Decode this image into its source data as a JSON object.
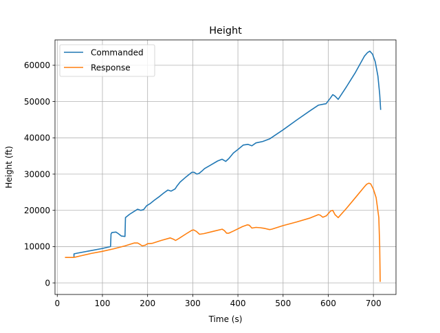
{
  "chart_data": {
    "type": "line",
    "title": "Height",
    "xlabel": "Time (s)",
    "ylabel": "Height (ft)",
    "xlim": [
      -5,
      750
    ],
    "ylim": [
      -3200,
      67000
    ],
    "xticks": [
      0,
      100,
      200,
      300,
      400,
      500,
      600,
      700
    ],
    "yticks": [
      0,
      10000,
      20000,
      30000,
      40000,
      50000,
      60000
    ],
    "xtick_labels": [
      "0",
      "100",
      "200",
      "300",
      "400",
      "500",
      "600",
      "700"
    ],
    "ytick_labels": [
      "0",
      "10000",
      "20000",
      "30000",
      "40000",
      "50000",
      "60000"
    ],
    "grid": true,
    "legend_position": "top-left",
    "series": [
      {
        "name": "Commanded",
        "color": "#1f77b4",
        "x": [
          37,
          37,
          45,
          70,
          100,
          118,
          119,
          121,
          130,
          135,
          142,
          150,
          151,
          160,
          170,
          178,
          185,
          191,
          198,
          205,
          215,
          225,
          235,
          245,
          252,
          261,
          265,
          272,
          285,
          298,
          303,
          309,
          314,
          320,
          326,
          340,
          355,
          365,
          373,
          380,
          390,
          400,
          412,
          422,
          431,
          440,
          455,
          470,
          500,
          530,
          560,
          578,
          590,
          595,
          605,
          610,
          615,
          622,
          640,
          660,
          680,
          687,
          692,
          698,
          704,
          710,
          714,
          716
        ],
        "y": [
          7000,
          8000,
          8200,
          8800,
          9500,
          10000,
          13500,
          13900,
          14000,
          13600,
          12900,
          12800,
          18000,
          18900,
          19700,
          20300,
          20000,
          20200,
          21300,
          21800,
          22800,
          23700,
          24700,
          25600,
          25300,
          25900,
          26700,
          27800,
          29200,
          30500,
          30500,
          30000,
          30200,
          30800,
          31500,
          32500,
          33600,
          34100,
          33500,
          34300,
          35800,
          36800,
          38000,
          38200,
          37800,
          38600,
          39000,
          39700,
          42200,
          44900,
          47500,
          49000,
          49300,
          49400,
          51000,
          51900,
          51500,
          50600,
          54000,
          58000,
          62500,
          63500,
          63900,
          63100,
          61000,
          57000,
          52000,
          47700
        ]
      },
      {
        "name": "Response",
        "color": "#ff7f0e",
        "x": [
          17,
          35,
          40,
          50,
          75,
          100,
          125,
          150,
          170,
          178,
          182,
          188,
          195,
          200,
          210,
          230,
          250,
          258,
          262,
          270,
          285,
          298,
          302,
          308,
          315,
          325,
          345,
          365,
          370,
          375,
          380,
          390,
          410,
          421,
          425,
          431,
          440,
          450,
          460,
          470,
          475,
          500,
          530,
          560,
          578,
          582,
          588,
          596,
          605,
          610,
          615,
          622,
          640,
          660,
          680,
          685,
          690,
          694,
          700,
          706,
          712,
          714,
          715
        ],
        "y": [
          7000,
          7000,
          7100,
          7400,
          8100,
          8700,
          9400,
          10200,
          11000,
          11000,
          10700,
          10200,
          10400,
          10800,
          10900,
          11700,
          12400,
          12000,
          11700,
          12300,
          13500,
          14500,
          14600,
          14200,
          13400,
          13600,
          14200,
          14800,
          14400,
          13700,
          13700,
          14300,
          15500,
          16000,
          15900,
          15100,
          15300,
          15200,
          15000,
          14700,
          14800,
          15800,
          16800,
          17900,
          18800,
          18700,
          18100,
          18500,
          19800,
          20000,
          18800,
          18000,
          20500,
          23500,
          26500,
          27200,
          27500,
          27300,
          25800,
          23500,
          18000,
          10000,
          300
        ]
      }
    ]
  }
}
